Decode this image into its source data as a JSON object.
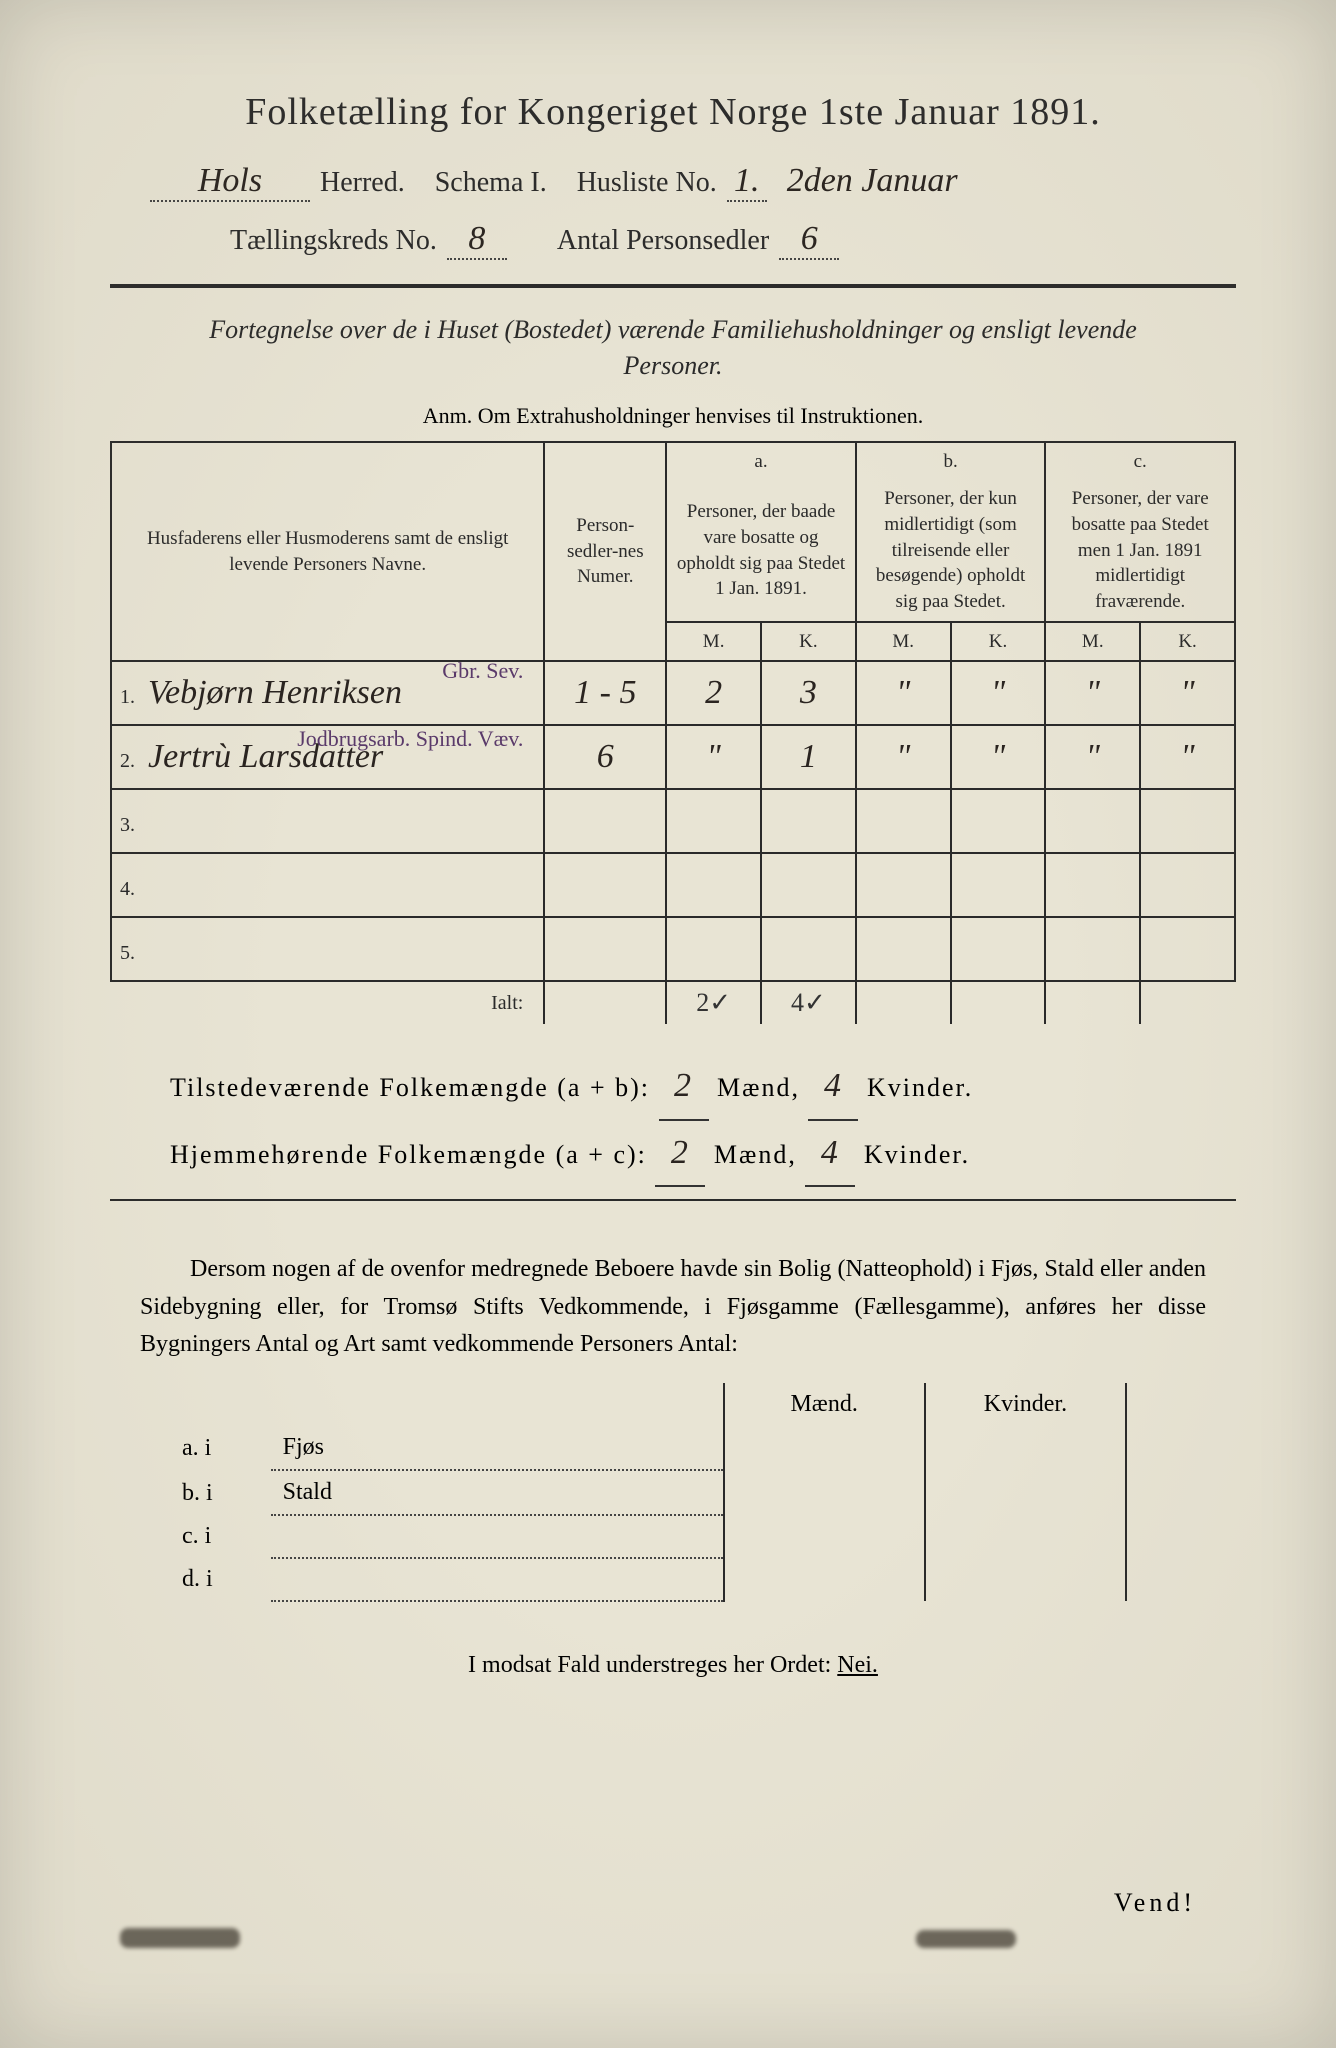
{
  "title": "Folketælling for Kongeriget Norge 1ste Januar 1891.",
  "header": {
    "herred_value": "Hols",
    "herred_label": "Herred.",
    "schema_label": "Schema I.",
    "husliste_label": "Husliste No.",
    "husliste_value": "1.",
    "date_note": "2den Januar",
    "kreds_label": "Tællingskreds No.",
    "kreds_value": "8",
    "antal_label": "Antal Personsedler",
    "antal_value": "6"
  },
  "description": "Fortegnelse over de i Huset (Bostedet) værende Familiehusholdninger og ensligt levende Personer.",
  "anm": "Anm. Om Extrahusholdninger henvises til Instruktionen.",
  "table": {
    "col_name": "Husfaderens eller Husmoderens samt de ensligt levende Personers Navne.",
    "col_num": "Person-sedler-nes Numer.",
    "col_a_top": "a.",
    "col_a": "Personer, der baade vare bosatte og opholdt sig paa Stedet 1 Jan. 1891.",
    "col_b_top": "b.",
    "col_b": "Personer, der kun midlertidigt (som tilreisende eller besøgende) opholdt sig paa Stedet.",
    "col_c_top": "c.",
    "col_c": "Personer, der vare bosatte paa Stedet men 1 Jan. 1891 midlertidigt fraværende.",
    "mk_m": "M.",
    "mk_k": "K.",
    "rows": [
      {
        "n": "1.",
        "name": "Vebjørn Henriksen",
        "num": "1 - 5",
        "am": "2",
        "ak": "3",
        "bm": "\"",
        "bk": "\"",
        "cm": "\"",
        "ck": "\"",
        "note": "Gbr. Sev."
      },
      {
        "n": "2.",
        "name": "Jertrù Larsdatter",
        "num": "6",
        "am": "\"",
        "ak": "1",
        "bm": "\"",
        "bk": "\"",
        "cm": "\"",
        "ck": "\"",
        "note": "Jodbrugsarb. Spind. Væv."
      },
      {
        "n": "3.",
        "name": "",
        "num": "",
        "am": "",
        "ak": "",
        "bm": "",
        "bk": "",
        "cm": "",
        "ck": "",
        "note": ""
      },
      {
        "n": "4.",
        "name": "",
        "num": "",
        "am": "",
        "ak": "",
        "bm": "",
        "bk": "",
        "cm": "",
        "ck": "",
        "note": ""
      },
      {
        "n": "5.",
        "name": "",
        "num": "",
        "am": "",
        "ak": "",
        "bm": "",
        "bk": "",
        "cm": "",
        "ck": "",
        "note": ""
      }
    ],
    "ialt_label": "Ialt:",
    "ialt_am": "2✓",
    "ialt_ak": "4✓"
  },
  "totals": {
    "line1_a": "Tilstedeværende Folkemængde (a + b):",
    "line1_m": "2",
    "line1_ml": "Mænd,",
    "line1_k": "4",
    "line1_kl": "Kvinder.",
    "line2_a": "Hjemmehørende Folkemængde (a + c):",
    "line2_m": "2",
    "line2_ml": "Mænd,",
    "line2_k": "4",
    "line2_kl": "Kvinder."
  },
  "paragraph": "Dersom nogen af de ovenfor medregnede Beboere havde sin Bolig (Natteophold) i Fjøs, Stald eller anden Sidebygning eller, for Tromsø Stifts Vedkommende, i Fjøsgamme (Fællesgamme), anføres her disse Bygningers Antal og Art samt vedkommende Personers Antal:",
  "bldg": {
    "hdr_m": "Mænd.",
    "hdr_k": "Kvinder.",
    "rows": [
      {
        "l": "a. i",
        "t": "Fjøs"
      },
      {
        "l": "b. i",
        "t": "Stald"
      },
      {
        "l": "c. i",
        "t": ""
      },
      {
        "l": "d. i",
        "t": ""
      }
    ]
  },
  "nei_line": "I modsat Fald understreges her Ordet:",
  "nei_word": "Nei.",
  "vend": "Vend!"
}
